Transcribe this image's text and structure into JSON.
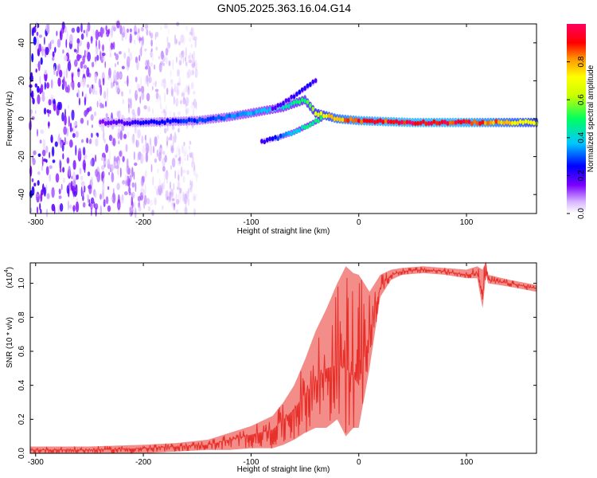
{
  "chart_data": [
    {
      "type": "heatmap",
      "title": "GN05.2025.363.16.04.G14",
      "xlabel": "Height of straight line (km)",
      "ylabel": "Frequency (Hz)",
      "xlim": [
        -305,
        165
      ],
      "ylim": [
        -50,
        50
      ],
      "xticks": [
        -300,
        -200,
        -100,
        0,
        100
      ],
      "yticks": [
        -40,
        -20,
        0,
        20,
        40
      ],
      "colorbar": {
        "label": "Normalized spectral amplitude",
        "range": [
          0.0,
          1.0
        ],
        "ticks": [
          "0.0",
          "0.2",
          "0.4",
          "0.6",
          "0.8"
        ],
        "tick_values": [
          0.0,
          0.2,
          0.4,
          0.6,
          0.8
        ]
      },
      "features": {
        "noise_region_km": [
          -305,
          -150
        ],
        "main_ridge": {
          "x": [
            -240,
            -200,
            -150,
            -120,
            -90,
            -70,
            -50,
            -40,
            -20,
            0,
            50,
            100,
            165
          ],
          "freq_hz": [
            -2,
            -2,
            -1,
            1,
            4,
            6,
            10,
            3,
            0,
            -1,
            -2,
            -2,
            -2
          ],
          "amplitude": [
            0.15,
            0.25,
            0.3,
            0.35,
            0.4,
            0.45,
            0.55,
            0.7,
            0.85,
            0.95,
            1.0,
            0.98,
            0.75
          ]
        },
        "upper_branch": {
          "x": [
            -80,
            -65,
            -55,
            -45,
            -40
          ],
          "freq_hz": [
            5,
            10,
            14,
            18,
            20
          ],
          "amplitude": [
            0.2,
            0.22,
            0.25,
            0.25,
            0.2
          ]
        },
        "lower_branch": {
          "x": [
            -90,
            -75,
            -60,
            -45,
            -35
          ],
          "freq_hz": [
            -12,
            -10,
            -7,
            -3,
            0
          ],
          "amplitude": [
            0.2,
            0.3,
            0.4,
            0.5,
            0.5
          ]
        }
      }
    },
    {
      "type": "line",
      "xlabel": "Height of straight line (km)",
      "ylabel": "SNR (10 * v/v)",
      "y_multiplier_label": "(x10",
      "y_multiplier_exp": "4",
      "xlim": [
        -305,
        165
      ],
      "ylim": [
        0.0,
        1.12
      ],
      "xticks": [
        -300,
        -200,
        -100,
        0,
        100
      ],
      "yticks": [
        "0.0",
        "0.2",
        "0.4",
        "0.6",
        "0.8",
        "1.0"
      ],
      "ytick_values": [
        0.0,
        0.2,
        0.4,
        0.6,
        0.8,
        1.0
      ],
      "series": [
        {
          "name": "SNR",
          "color": "#e8302a",
          "x": [
            -305,
            -250,
            -200,
            -170,
            -140,
            -120,
            -100,
            -80,
            -70,
            -60,
            -50,
            -40,
            -30,
            -20,
            -12,
            -5,
            0,
            10,
            20,
            30,
            40,
            60,
            80,
            100,
            110,
            115,
            118,
            120,
            140,
            165
          ],
          "y": [
            0.02,
            0.02,
            0.03,
            0.04,
            0.05,
            0.08,
            0.11,
            0.14,
            0.2,
            0.26,
            0.35,
            0.42,
            0.5,
            0.52,
            0.5,
            0.45,
            0.4,
            0.72,
            0.98,
            1.05,
            1.07,
            1.08,
            1.07,
            1.05,
            1.06,
            0.9,
            1.12,
            1.02,
            1.0,
            0.97
          ],
          "envelope_low": [
            0.0,
            0.0,
            0.0,
            0.01,
            0.02,
            0.02,
            0.03,
            0.03,
            0.05,
            0.08,
            0.12,
            0.15,
            0.15,
            0.2,
            0.1,
            0.15,
            0.15,
            0.5,
            0.92,
            1.02,
            1.05,
            1.06,
            1.05,
            1.03,
            1.03,
            0.85,
            1.05,
            1.0,
            0.98,
            0.95
          ],
          "envelope_high": [
            0.04,
            0.04,
            0.05,
            0.06,
            0.08,
            0.12,
            0.16,
            0.22,
            0.3,
            0.4,
            0.55,
            0.72,
            0.85,
            1.0,
            1.1,
            1.06,
            1.05,
            0.95,
            1.05,
            1.08,
            1.09,
            1.1,
            1.09,
            1.08,
            1.1,
            1.08,
            1.13,
            1.05,
            1.02,
            0.99
          ]
        }
      ]
    }
  ]
}
